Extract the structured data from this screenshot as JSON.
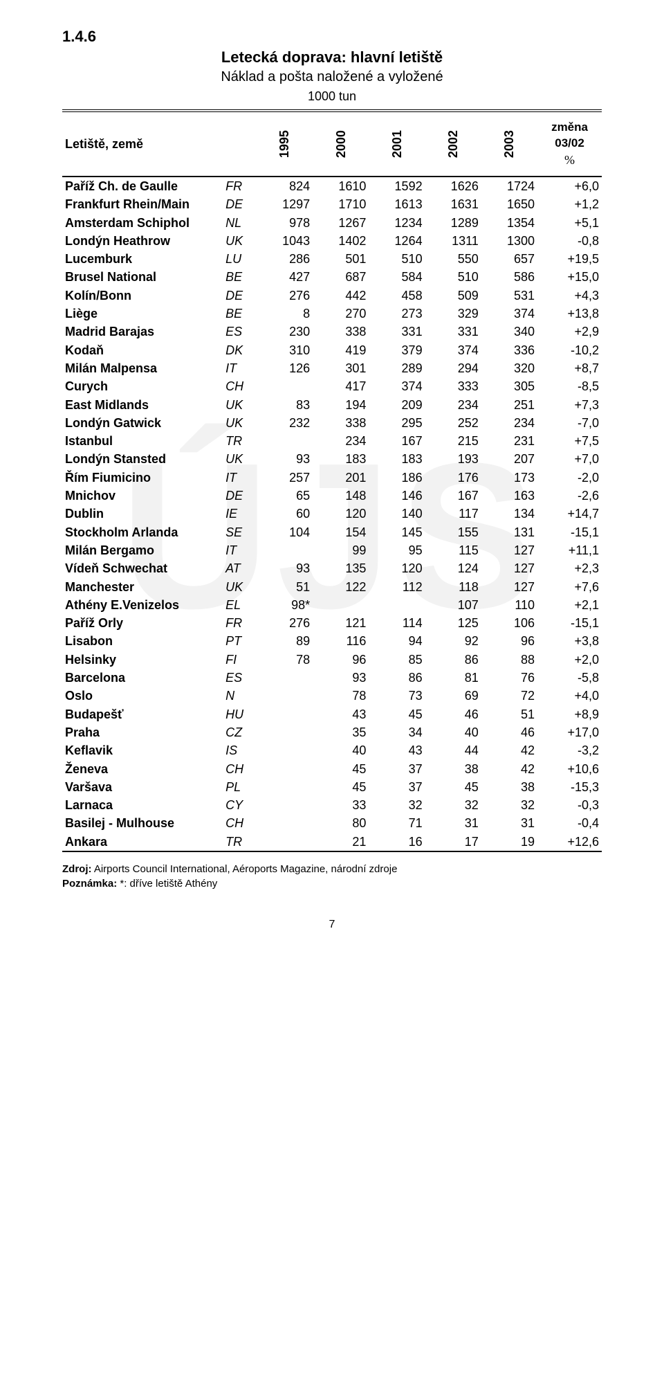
{
  "section_number": "1.4.6",
  "title": "Letecká doprava: hlavní letiště",
  "subtitle": "Náklad a pošta naložené a vyložené",
  "unit": "1000 tun",
  "header": {
    "airport_label": "Letiště, země",
    "years": [
      "1995",
      "2000",
      "2001",
      "2002",
      "2003"
    ],
    "change_top": "změna",
    "change_mid": "03/02",
    "change_pct": "%"
  },
  "rows": [
    {
      "airport": "Paříž Ch. de Gaulle",
      "cc": "FR",
      "y": [
        "824",
        "1610",
        "1592",
        "1626",
        "1724"
      ],
      "chg": "+6,0"
    },
    {
      "airport": "Frankfurt Rhein/Main",
      "cc": "DE",
      "y": [
        "1297",
        "1710",
        "1613",
        "1631",
        "1650"
      ],
      "chg": "+1,2"
    },
    {
      "airport": "Amsterdam Schiphol",
      "cc": "NL",
      "y": [
        "978",
        "1267",
        "1234",
        "1289",
        "1354"
      ],
      "chg": "+5,1"
    },
    {
      "airport": "Londýn Heathrow",
      "cc": "UK",
      "y": [
        "1043",
        "1402",
        "1264",
        "1311",
        "1300"
      ],
      "chg": "-0,8"
    },
    {
      "airport": "Lucemburk",
      "cc": "LU",
      "y": [
        "286",
        "501",
        "510",
        "550",
        "657"
      ],
      "chg": "+19,5"
    },
    {
      "airport": "Brusel National",
      "cc": "BE",
      "y": [
        "427",
        "687",
        "584",
        "510",
        "586"
      ],
      "chg": "+15,0"
    },
    {
      "airport": "Kolín/Bonn",
      "cc": "DE",
      "y": [
        "276",
        "442",
        "458",
        "509",
        "531"
      ],
      "chg": "+4,3"
    },
    {
      "airport": "Liège",
      "cc": "BE",
      "y": [
        "8",
        "270",
        "273",
        "329",
        "374"
      ],
      "chg": "+13,8"
    },
    {
      "airport": "Madrid Barajas",
      "cc": "ES",
      "y": [
        "230",
        "338",
        "331",
        "331",
        "340"
      ],
      "chg": "+2,9"
    },
    {
      "airport": "Kodaň",
      "cc": "DK",
      "y": [
        "310",
        "419",
        "379",
        "374",
        "336"
      ],
      "chg": "-10,2"
    },
    {
      "airport": "Milán Malpensa",
      "cc": "IT",
      "y": [
        "126",
        "301",
        "289",
        "294",
        "320"
      ],
      "chg": "+8,7"
    },
    {
      "airport": "Curych",
      "cc": "CH",
      "y": [
        "",
        "417",
        "374",
        "333",
        "305"
      ],
      "chg": "-8,5"
    },
    {
      "airport": "East Midlands",
      "cc": "UK",
      "y": [
        "83",
        "194",
        "209",
        "234",
        "251"
      ],
      "chg": "+7,3"
    },
    {
      "airport": "Londýn Gatwick",
      "cc": "UK",
      "y": [
        "232",
        "338",
        "295",
        "252",
        "234"
      ],
      "chg": "-7,0"
    },
    {
      "airport": "Istanbul",
      "cc": "TR",
      "y": [
        "",
        "234",
        "167",
        "215",
        "231"
      ],
      "chg": "+7,5"
    },
    {
      "airport": "Londýn Stansted",
      "cc": "UK",
      "y": [
        "93",
        "183",
        "183",
        "193",
        "207"
      ],
      "chg": "+7,0"
    },
    {
      "airport": "Řím Fiumicino",
      "cc": "IT",
      "y": [
        "257",
        "201",
        "186",
        "176",
        "173"
      ],
      "chg": "-2,0"
    },
    {
      "airport": "Mnichov",
      "cc": "DE",
      "y": [
        "65",
        "148",
        "146",
        "167",
        "163"
      ],
      "chg": "-2,6"
    },
    {
      "airport": "Dublin",
      "cc": "IE",
      "y": [
        "60",
        "120",
        "140",
        "117",
        "134"
      ],
      "chg": "+14,7"
    },
    {
      "airport": "Stockholm Arlanda",
      "cc": "SE",
      "y": [
        "104",
        "154",
        "145",
        "155",
        "131"
      ],
      "chg": "-15,1"
    },
    {
      "airport": "Milán Bergamo",
      "cc": "IT",
      "y": [
        "",
        "99",
        "95",
        "115",
        "127"
      ],
      "chg": "+11,1"
    },
    {
      "airport": "Vídeň Schwechat",
      "cc": "AT",
      "y": [
        "93",
        "135",
        "120",
        "124",
        "127"
      ],
      "chg": "+2,3"
    },
    {
      "airport": "Manchester",
      "cc": "UK",
      "y": [
        "51",
        "122",
        "112",
        "118",
        "127"
      ],
      "chg": "+7,6"
    },
    {
      "airport": "Athény E.Venizelos",
      "cc": "EL",
      "y": [
        "98*",
        "",
        "",
        "107",
        "110"
      ],
      "chg": "+2,1"
    },
    {
      "airport": "Paříž Orly",
      "cc": "FR",
      "y": [
        "276",
        "121",
        "114",
        "125",
        "106"
      ],
      "chg": "-15,1"
    },
    {
      "airport": "Lisabon",
      "cc": "PT",
      "y": [
        "89",
        "116",
        "94",
        "92",
        "96"
      ],
      "chg": "+3,8"
    },
    {
      "airport": "Helsinky",
      "cc": "FI",
      "y": [
        "78",
        "96",
        "85",
        "86",
        "88"
      ],
      "chg": "+2,0"
    },
    {
      "airport": "Barcelona",
      "cc": "ES",
      "y": [
        "",
        "93",
        "86",
        "81",
        "76"
      ],
      "chg": "-5,8"
    },
    {
      "airport": "Oslo",
      "cc": "N",
      "y": [
        "",
        "78",
        "73",
        "69",
        "72"
      ],
      "chg": "+4,0"
    },
    {
      "airport": "Budapešť",
      "cc": "HU",
      "y": [
        "",
        "43",
        "45",
        "46",
        "51"
      ],
      "chg": "+8,9"
    },
    {
      "airport": "Praha",
      "cc": "CZ",
      "y": [
        "",
        "35",
        "34",
        "40",
        "46"
      ],
      "chg": "+17,0"
    },
    {
      "airport": "Keflavik",
      "cc": "IS",
      "y": [
        "",
        "40",
        "43",
        "44",
        "42"
      ],
      "chg": "-3,2"
    },
    {
      "airport": "Ženeva",
      "cc": "CH",
      "y": [
        "",
        "45",
        "37",
        "38",
        "42"
      ],
      "chg": "+10,6"
    },
    {
      "airport": "Varšava",
      "cc": "PL",
      "y": [
        "",
        "45",
        "37",
        "45",
        "38"
      ],
      "chg": "-15,3"
    },
    {
      "airport": "Larnaca",
      "cc": "CY",
      "y": [
        "",
        "33",
        "32",
        "32",
        "32"
      ],
      "chg": "-0,3"
    },
    {
      "airport": "Basilej - Mulhouse",
      "cc": "CH",
      "y": [
        "",
        "80",
        "71",
        "31",
        "31"
      ],
      "chg": "-0,4"
    },
    {
      "airport": "Ankara",
      "cc": "TR",
      "y": [
        "",
        "21",
        "16",
        "17",
        "19"
      ],
      "chg": "+12,6"
    }
  ],
  "footer": {
    "source_label": "Zdroj:",
    "source_text": " Airports Council International, Aéroports Magazine, národní zdroje",
    "note_label": "Poznámka:",
    "note_text": " *: dříve letiště Athény"
  },
  "page_number": "7",
  "watermark": "ÚJS"
}
